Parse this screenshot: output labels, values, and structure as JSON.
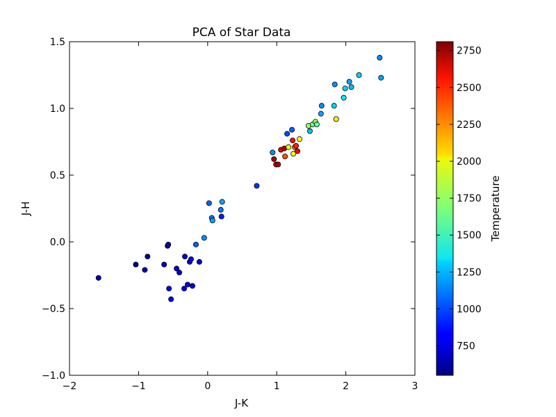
{
  "chart_data": {
    "type": "scatter",
    "title": "PCA of Star Data",
    "xlabel": "J-K",
    "ylabel": "J-H",
    "xlim": [
      -2,
      3
    ],
    "ylim": [
      -1.0,
      1.5
    ],
    "x_ticks": [
      "−2",
      "−1",
      "0",
      "1",
      "2",
      "3"
    ],
    "y_ticks": [
      "−1.0",
      "−0.5",
      "0.0",
      "0.5",
      "1.0",
      "1.5"
    ],
    "grid": false,
    "colorbar": {
      "label": "Temperature",
      "range": [
        550,
        2810
      ],
      "colormap": "jet",
      "ticks": [
        "750",
        "1000",
        "1250",
        "1500",
        "1750",
        "2000",
        "2250",
        "2500",
        "2750"
      ]
    },
    "points": [
      {
        "x": -1.58,
        "y": -0.27,
        "c": 650
      },
      {
        "x": -1.04,
        "y": -0.17,
        "c": 600
      },
      {
        "x": -0.91,
        "y": -0.21,
        "c": 700
      },
      {
        "x": -0.87,
        "y": -0.11,
        "c": 650
      },
      {
        "x": -0.63,
        "y": -0.17,
        "c": 700
      },
      {
        "x": -0.58,
        "y": -0.03,
        "c": 700
      },
      {
        "x": -0.57,
        "y": -0.02,
        "c": 650
      },
      {
        "x": -0.56,
        "y": -0.35,
        "c": 850
      },
      {
        "x": -0.53,
        "y": -0.43,
        "c": 800
      },
      {
        "x": -0.45,
        "y": -0.2,
        "c": 750
      },
      {
        "x": -0.41,
        "y": -0.23,
        "c": 700
      },
      {
        "x": -0.34,
        "y": -0.35,
        "c": 800
      },
      {
        "x": -0.33,
        "y": -0.11,
        "c": 750
      },
      {
        "x": -0.29,
        "y": -0.32,
        "c": 750
      },
      {
        "x": -0.26,
        "y": -0.15,
        "c": 800
      },
      {
        "x": -0.24,
        "y": -0.13,
        "c": 850
      },
      {
        "x": -0.22,
        "y": -0.33,
        "c": 800
      },
      {
        "x": -0.17,
        "y": -0.02,
        "c": 1050
      },
      {
        "x": -0.12,
        "y": -0.15,
        "c": 750
      },
      {
        "x": -0.05,
        "y": 0.03,
        "c": 1150
      },
      {
        "x": 0.02,
        "y": 0.29,
        "c": 1050
      },
      {
        "x": 0.06,
        "y": 0.18,
        "c": 1100
      },
      {
        "x": 0.07,
        "y": 0.16,
        "c": 1200
      },
      {
        "x": 0.19,
        "y": 0.24,
        "c": 1100
      },
      {
        "x": 0.2,
        "y": 0.19,
        "c": 900
      },
      {
        "x": 0.21,
        "y": 0.3,
        "c": 1200
      },
      {
        "x": 0.71,
        "y": 0.42,
        "c": 950
      },
      {
        "x": 0.94,
        "y": 0.67,
        "c": 1150
      },
      {
        "x": 0.96,
        "y": 0.62,
        "c": 2750
      },
      {
        "x": 0.99,
        "y": 0.58,
        "c": 2650
      },
      {
        "x": 1.02,
        "y": 0.58,
        "c": 2700
      },
      {
        "x": 1.06,
        "y": 0.69,
        "c": 2600
      },
      {
        "x": 1.11,
        "y": 0.7,
        "c": 2700
      },
      {
        "x": 1.12,
        "y": 0.64,
        "c": 2350
      },
      {
        "x": 1.15,
        "y": 0.81,
        "c": 1000
      },
      {
        "x": 1.17,
        "y": 0.71,
        "c": 1900
      },
      {
        "x": 1.22,
        "y": 0.84,
        "c": 1050
      },
      {
        "x": 1.23,
        "y": 0.76,
        "c": 2500
      },
      {
        "x": 1.24,
        "y": 0.66,
        "c": 1950
      },
      {
        "x": 1.26,
        "y": 0.71,
        "c": 2300
      },
      {
        "x": 1.28,
        "y": 0.72,
        "c": 2450
      },
      {
        "x": 1.3,
        "y": 0.68,
        "c": 2550
      },
      {
        "x": 1.33,
        "y": 0.77,
        "c": 1950
      },
      {
        "x": 1.46,
        "y": 0.87,
        "c": 1750
      },
      {
        "x": 1.48,
        "y": 0.83,
        "c": 1250
      },
      {
        "x": 1.52,
        "y": 0.88,
        "c": 1650
      },
      {
        "x": 1.56,
        "y": 0.9,
        "c": 1750
      },
      {
        "x": 1.58,
        "y": 0.88,
        "c": 1600
      },
      {
        "x": 1.64,
        "y": 0.96,
        "c": 1200
      },
      {
        "x": 1.65,
        "y": 1.02,
        "c": 1150
      },
      {
        "x": 1.83,
        "y": 1.02,
        "c": 1300
      },
      {
        "x": 1.84,
        "y": 1.18,
        "c": 1150
      },
      {
        "x": 1.86,
        "y": 0.92,
        "c": 2000
      },
      {
        "x": 1.97,
        "y": 1.08,
        "c": 1350
      },
      {
        "x": 1.99,
        "y": 1.15,
        "c": 1300
      },
      {
        "x": 2.05,
        "y": 1.2,
        "c": 1200
      },
      {
        "x": 2.08,
        "y": 1.16,
        "c": 1250
      },
      {
        "x": 2.19,
        "y": 1.25,
        "c": 1300
      },
      {
        "x": 2.49,
        "y": 1.38,
        "c": 1150
      },
      {
        "x": 2.51,
        "y": 1.23,
        "c": 1200
      }
    ]
  }
}
